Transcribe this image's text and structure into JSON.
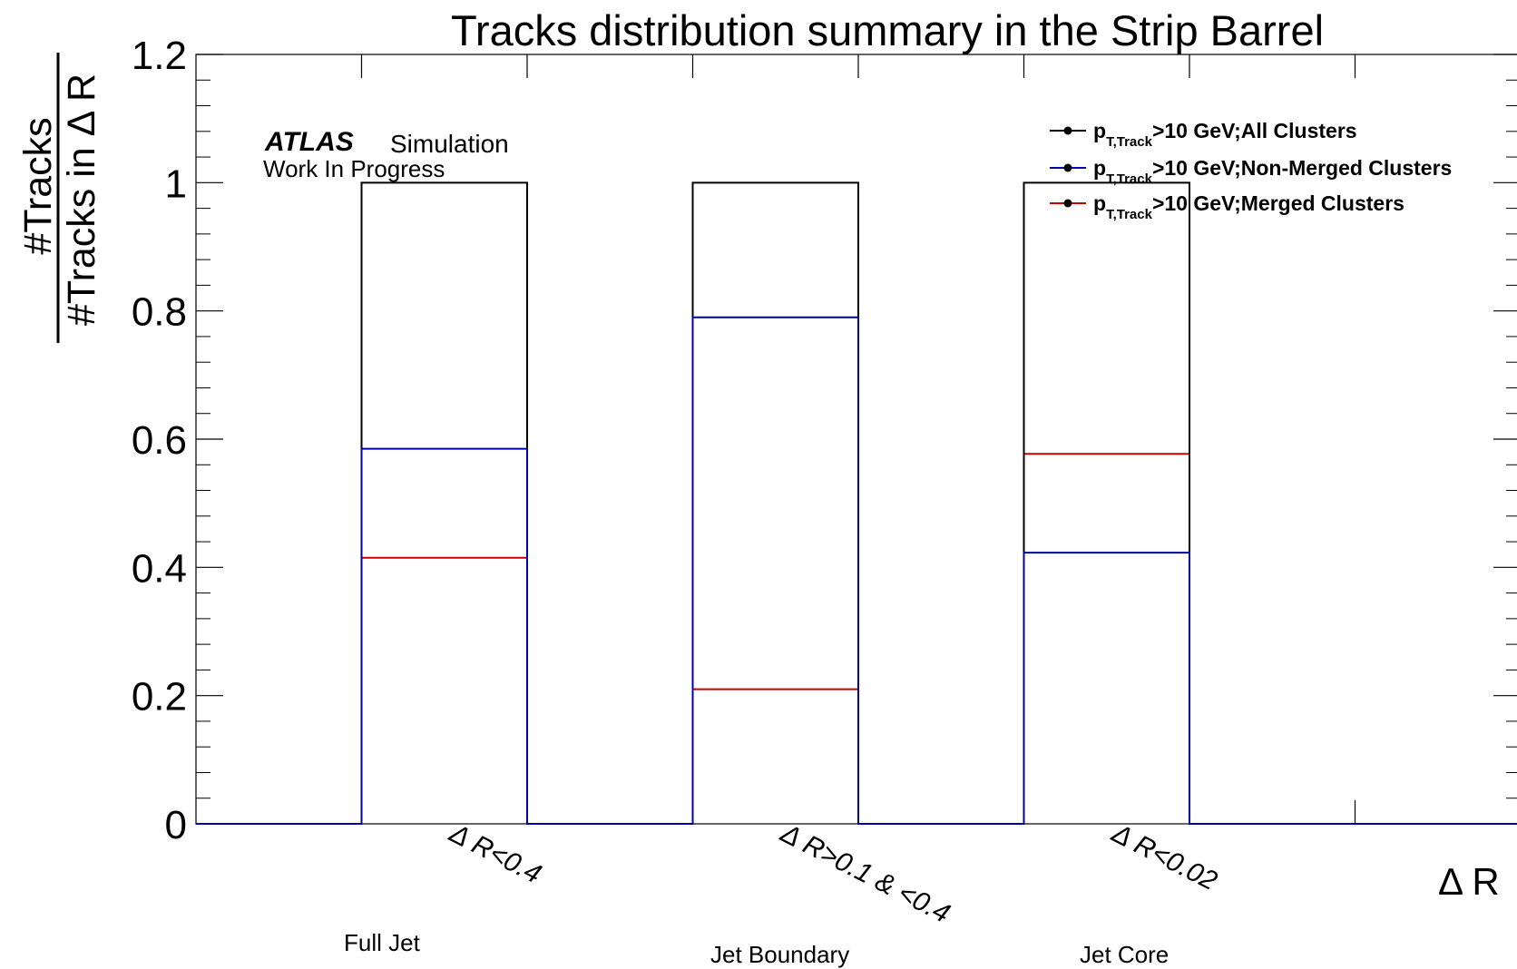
{
  "chart_data": {
    "type": "bar",
    "title": "Tracks distribution summary in the Strip Barrel",
    "ylabel_numerator": "#Tracks",
    "ylabel_denominator": "#Tracks in Δ R",
    "xlabel": "Δ R",
    "ylim": [
      0,
      1.2
    ],
    "y_ticks": [
      "0",
      "0.2",
      "0.4",
      "0.6",
      "0.8",
      "1",
      "1.2"
    ],
    "categories": [
      "Δ R<0.4",
      "Δ R>0.1 & <0.4",
      "Δ R<0.02"
    ],
    "group_captions": [
      "Full Jet",
      "Jet Boundary",
      "Jet Core"
    ],
    "series": [
      {
        "name": "p_T,Track>10 GeV;All Clusters",
        "legend_main": "p",
        "legend_sub": "T,Track",
        "legend_rest": ">10 GeV;All Clusters",
        "color": "#000000",
        "values": [
          1.0,
          1.0,
          1.0
        ]
      },
      {
        "name": "p_T,Track>10 GeV;Non-Merged Clusters",
        "legend_main": "p",
        "legend_sub": "T,Track",
        "legend_rest": ">10 GeV;Non-Merged Clusters",
        "color": "#0000aa",
        "values": [
          0.585,
          0.79,
          0.423
        ]
      },
      {
        "name": "p_T,Track>10 GeV;Merged Clusters",
        "legend_main": "p",
        "legend_sub": "T,Track",
        "legend_rest": ">10 GeV;Merged Clusters",
        "color": "#cc0000",
        "values": [
          0.415,
          0.21,
          0.577
        ]
      }
    ],
    "legend_position": "top-right",
    "annotations": {
      "atlas": "ATLAS",
      "simulation": "Simulation",
      "status": "Work In Progress"
    }
  }
}
